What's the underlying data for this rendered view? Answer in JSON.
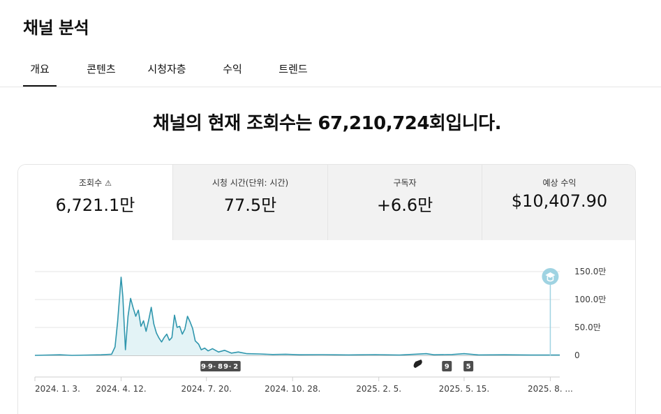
{
  "page": {
    "title": "채널 분석"
  },
  "tabs": [
    {
      "label": "개요",
      "active": true
    },
    {
      "label": "콘텐츠",
      "active": false
    },
    {
      "label": "시청자층",
      "active": false
    },
    {
      "label": "수익",
      "active": false
    },
    {
      "label": "트렌드",
      "active": false
    }
  ],
  "headline": "채널의 현재 조회수는 67,210,724회입니다.",
  "metrics": [
    {
      "label": "조회수",
      "value": "6,721.1만",
      "selected": true,
      "icon": "warning-icon"
    },
    {
      "label": "시청 시간(단위: 시간)",
      "value": "77.5만",
      "selected": false
    },
    {
      "label": "구독자",
      "value": "+6.6만",
      "selected": false
    },
    {
      "label": "예상 수익",
      "value": "$10,407.90",
      "selected": false
    }
  ],
  "colors": {
    "line": "#2f96ad",
    "fill": "#e3f3f6",
    "badge": "#4d4d4d",
    "marker": "#9fd3e2"
  },
  "milestone_icon": "graduation-cap-icon",
  "chart_data": {
    "type": "area",
    "ylim": [
      0,
      1600000
    ],
    "y_ticks": [
      {
        "value": 0,
        "label": "0"
      },
      {
        "value": 500000,
        "label": "50.0만"
      },
      {
        "value": 1000000,
        "label": "100.0만"
      },
      {
        "value": 1500000,
        "label": "150.0만"
      }
    ],
    "x_ticks": [
      {
        "date": "2024-01-03",
        "label": "2024. 1. 3."
      },
      {
        "date": "2024-04-12",
        "label": "2024. 4. 12."
      },
      {
        "date": "2024-07-20",
        "label": "2024. 7. 20."
      },
      {
        "date": "2024-10-28",
        "label": "2024. 10. 28."
      },
      {
        "date": "2025-02-05",
        "label": "2025. 2. 5."
      },
      {
        "date": "2025-05-15",
        "label": "2025. 5. 15."
      },
      {
        "date": "2025-08-23",
        "label": "2025. 8. ..."
      }
    ],
    "x_range": [
      "2024-01-03",
      "2025-09-03"
    ],
    "series": [
      {
        "points": [
          [
            "2024-01-03",
            0
          ],
          [
            "2024-02-01",
            10000
          ],
          [
            "2024-02-15",
            0
          ],
          [
            "2024-03-20",
            10000
          ],
          [
            "2024-04-01",
            20000
          ],
          [
            "2024-04-05",
            150000
          ],
          [
            "2024-04-08",
            600000
          ],
          [
            "2024-04-10",
            1000000
          ],
          [
            "2024-04-12",
            1400000
          ],
          [
            "2024-04-14",
            1050000
          ],
          [
            "2024-04-17",
            100000
          ],
          [
            "2024-04-20",
            700000
          ],
          [
            "2024-04-23",
            1020000
          ],
          [
            "2024-04-26",
            850000
          ],
          [
            "2024-04-29",
            700000
          ],
          [
            "2024-05-02",
            810000
          ],
          [
            "2024-05-05",
            520000
          ],
          [
            "2024-05-08",
            620000
          ],
          [
            "2024-05-11",
            430000
          ],
          [
            "2024-05-14",
            630000
          ],
          [
            "2024-05-17",
            860000
          ],
          [
            "2024-05-20",
            560000
          ],
          [
            "2024-05-23",
            400000
          ],
          [
            "2024-05-26",
            310000
          ],
          [
            "2024-05-29",
            240000
          ],
          [
            "2024-06-01",
            320000
          ],
          [
            "2024-06-04",
            380000
          ],
          [
            "2024-06-07",
            270000
          ],
          [
            "2024-06-10",
            320000
          ],
          [
            "2024-06-13",
            720000
          ],
          [
            "2024-06-16",
            500000
          ],
          [
            "2024-06-19",
            520000
          ],
          [
            "2024-06-22",
            380000
          ],
          [
            "2024-06-25",
            470000
          ],
          [
            "2024-06-28",
            700000
          ],
          [
            "2024-07-01",
            600000
          ],
          [
            "2024-07-04",
            480000
          ],
          [
            "2024-07-07",
            260000
          ],
          [
            "2024-07-11",
            200000
          ],
          [
            "2024-07-14",
            100000
          ],
          [
            "2024-07-18",
            130000
          ],
          [
            "2024-07-22",
            80000
          ],
          [
            "2024-07-27",
            120000
          ],
          [
            "2024-08-03",
            60000
          ],
          [
            "2024-08-10",
            90000
          ],
          [
            "2024-08-18",
            40000
          ],
          [
            "2024-08-26",
            60000
          ],
          [
            "2024-09-05",
            30000
          ],
          [
            "2024-09-20",
            25000
          ],
          [
            "2024-10-05",
            15000
          ],
          [
            "2024-10-20",
            20000
          ],
          [
            "2024-11-05",
            10000
          ],
          [
            "2024-12-01",
            12000
          ],
          [
            "2025-01-01",
            8000
          ],
          [
            "2025-02-01",
            12000
          ],
          [
            "2025-03-01",
            5000
          ],
          [
            "2025-04-01",
            30000
          ],
          [
            "2025-04-10",
            10000
          ],
          [
            "2025-05-01",
            15000
          ],
          [
            "2025-05-15",
            30000
          ],
          [
            "2025-06-01",
            8000
          ],
          [
            "2025-07-01",
            10000
          ],
          [
            "2025-08-01",
            5000
          ],
          [
            "2025-09-03",
            5000
          ]
        ]
      }
    ],
    "annotations": [
      {
        "date": "2024-07-20",
        "label": "9+"
      },
      {
        "date": "2024-07-28",
        "label": "9+"
      },
      {
        "date": "2024-08-05",
        "label": "8"
      },
      {
        "date": "2024-08-15",
        "label": "9+"
      },
      {
        "date": "2024-08-23",
        "label": "2"
      },
      {
        "date": "2025-03-22",
        "label": "",
        "icon": "shorts-icon"
      },
      {
        "date": "2025-04-25",
        "label": "9"
      },
      {
        "date": "2025-05-20",
        "label": "5"
      }
    ],
    "milestone_date": "2025-08-23"
  }
}
